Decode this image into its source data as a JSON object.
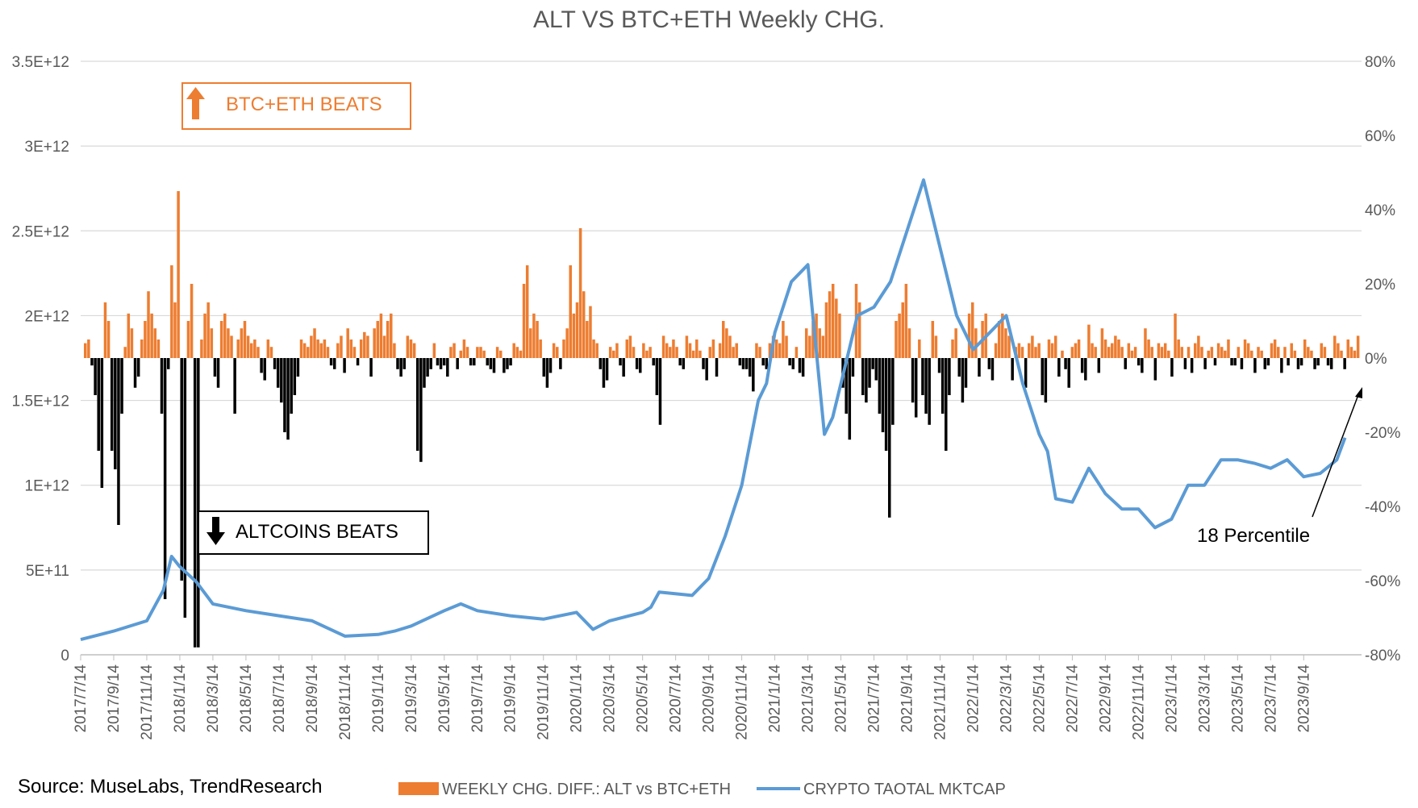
{
  "chart_data": {
    "type": "bar+line",
    "title": "ALT VS BTC+ETH Weekly CHG.",
    "source": "Source: MuseLabs, TrendResearch",
    "colors": {
      "bar_positive": "#ED7D31",
      "bar_negative": "#000000",
      "line": "#5B9BD5",
      "grid": "#D9D9D9",
      "text": "#595959"
    },
    "left_axis": {
      "min": 0,
      "max": 3500000000000,
      "ticks": [
        0,
        500000000000,
        1000000000000,
        1500000000000,
        2000000000000,
        2500000000000,
        3000000000000,
        3500000000000
      ],
      "tick_labels": [
        "0",
        "5E+11",
        "1E+12",
        "1.5E+12",
        "2E+12",
        "2.5E+12",
        "3E+12",
        "3.5E+12"
      ]
    },
    "right_axis": {
      "min": -80,
      "max": 80,
      "ticks": [
        -80,
        -60,
        -40,
        -20,
        0,
        20,
        40,
        60,
        80
      ],
      "tick_labels": [
        "-80%",
        "-60%",
        "-40%",
        "-20%",
        "0%",
        "20%",
        "40%",
        "60%",
        "80%"
      ]
    },
    "x_tick_labels": [
      "2017/7/14",
      "2017/9/14",
      "2017/11/14",
      "2018/1/14",
      "2018/3/14",
      "2018/5/14",
      "2018/7/14",
      "2018/9/14",
      "2018/11/14",
      "2019/1/14",
      "2019/3/14",
      "2019/5/14",
      "2019/7/14",
      "2019/9/14",
      "2019/11/14",
      "2020/1/14",
      "2020/3/14",
      "2020/5/14",
      "2020/7/14",
      "2020/9/14",
      "2020/11/14",
      "2021/1/14",
      "2021/3/14",
      "2021/5/14",
      "2021/7/14",
      "2021/9/14",
      "2021/11/14",
      "2022/1/14",
      "2022/3/14",
      "2022/5/14",
      "2022/7/14",
      "2022/9/14",
      "2022/11/14",
      "2023/1/14",
      "2023/3/14",
      "2023/5/14",
      "2023/7/14",
      "2023/9/14"
    ],
    "line_series": {
      "name": "CRYPTO TAOTAL MKTCAP",
      "unit": "USD",
      "months_from_2017_07": [
        0,
        2,
        4,
        5,
        5.5,
        6,
        7,
        8,
        10,
        12,
        14,
        16,
        18,
        19,
        20,
        22,
        23,
        24,
        26,
        28,
        30,
        31,
        32,
        34,
        34.5,
        35,
        37,
        38,
        39,
        40,
        41,
        41.5,
        42,
        43,
        44,
        45,
        45.5,
        46,
        47,
        48,
        49,
        51,
        52,
        53,
        54,
        55,
        56,
        57,
        58,
        58.5,
        59,
        60,
        61,
        62,
        63,
        64,
        65,
        66,
        67,
        68,
        69,
        70,
        71,
        72,
        73,
        74,
        75,
        76,
        76.5
      ],
      "values": [
        90000000000,
        140000000000,
        200000000000,
        380000000000,
        580000000000,
        520000000000,
        430000000000,
        300000000000,
        260000000000,
        230000000000,
        200000000000,
        110000000000,
        120000000000,
        140000000000,
        170000000000,
        260000000000,
        300000000000,
        260000000000,
        230000000000,
        210000000000,
        250000000000,
        150000000000,
        200000000000,
        250000000000,
        280000000000,
        370000000000,
        350000000000,
        450000000000,
        700000000000,
        1000000000000,
        1500000000000,
        1600000000000,
        1900000000000,
        2200000000000,
        2300000000000,
        1300000000000,
        1400000000000,
        1600000000000,
        2000000000000,
        2050000000000,
        2200000000000,
        2800000000000,
        2400000000000,
        2000000000000,
        1800000000000,
        1900000000000,
        2000000000000,
        1600000000000,
        1300000000000,
        1200000000000,
        920000000000,
        900000000000,
        1100000000000,
        950000000000,
        860000000000,
        860000000000,
        750000000000,
        800000000000,
        1000000000000,
        1000000000000,
        1150000000000,
        1150000000000,
        1130000000000,
        1100000000000,
        1150000000000,
        1050000000000,
        1070000000000,
        1150000000000,
        1280000000000
      ]
    },
    "bar_series": {
      "name": "WEEKLY CHG. DIFF.: ALT vs BTC+ETH",
      "unit": "percent",
      "weekly_values": [
        4,
        5,
        -2,
        -10,
        -25,
        -35,
        15,
        10,
        -25,
        -30,
        -45,
        -15,
        3,
        12,
        8,
        -8,
        -5,
        5,
        10,
        18,
        12,
        8,
        5,
        -15,
        -65,
        -3,
        25,
        15,
        45,
        -60,
        -70,
        10,
        20,
        -78,
        -78,
        5,
        12,
        15,
        8,
        -5,
        -8,
        10,
        12,
        8,
        6,
        -15,
        5,
        8,
        10,
        6,
        4,
        5,
        3,
        -4,
        -6,
        5,
        3,
        -3,
        -8,
        -12,
        -20,
        -22,
        -15,
        -10,
        -5,
        5,
        4,
        3,
        6,
        8,
        5,
        4,
        5,
        3,
        -2,
        -3,
        4,
        6,
        -4,
        8,
        5,
        3,
        -2,
        5,
        7,
        6,
        -5,
        8,
        10,
        12,
        6,
        10,
        12,
        4,
        -3,
        -5,
        -3,
        6,
        5,
        4,
        -25,
        -28,
        -8,
        -5,
        -3,
        4,
        -2,
        -3,
        -2,
        -5,
        3,
        4,
        -3,
        2,
        5,
        3,
        -2,
        -2,
        3,
        3,
        2,
        -2,
        -3,
        -4,
        3,
        2,
        -4,
        -3,
        -2,
        4,
        3,
        2,
        20,
        25,
        8,
        12,
        10,
        5,
        -5,
        -8,
        -4,
        4,
        3,
        -3,
        5,
        8,
        25,
        12,
        15,
        35,
        18,
        10,
        14,
        5,
        4,
        -3,
        -8,
        -6,
        3,
        2,
        4,
        -2,
        -5,
        5,
        6,
        3,
        -3,
        -4,
        4,
        2,
        3,
        -2,
        -10,
        -18,
        6,
        4,
        3,
        5,
        3,
        -2,
        -3,
        6,
        4,
        2,
        5,
        2,
        -3,
        -6,
        3,
        5,
        -5,
        4,
        10,
        8,
        6,
        3,
        4,
        -2,
        -3,
        -3,
        -5,
        -9,
        4,
        3,
        -2,
        -3,
        4,
        6,
        5,
        4,
        10,
        6,
        -2,
        -3,
        3,
        -4,
        -5,
        8,
        6,
        10,
        12,
        8,
        6,
        15,
        18,
        20,
        16,
        12,
        -8,
        -15,
        -22,
        -5,
        20,
        15,
        -10,
        -12,
        -8,
        -3,
        -6,
        -15,
        -20,
        -25,
        -43,
        -18,
        10,
        12,
        15,
        20,
        8,
        -12,
        -16,
        5,
        -10,
        -15,
        -18,
        10,
        6,
        -4,
        -15,
        -25,
        -10,
        5,
        8,
        -5,
        -12,
        -8,
        12,
        15,
        8,
        -5,
        10,
        12,
        -3,
        -6,
        4,
        10,
        12,
        8,
        6,
        -6,
        3,
        4,
        3,
        -8,
        4,
        6,
        3,
        4,
        -10,
        -12,
        5,
        4,
        6,
        -5,
        2,
        -3,
        -8,
        3,
        4,
        5,
        -4,
        -6,
        9,
        4,
        3,
        -4,
        8,
        5,
        3,
        4,
        6,
        5,
        3,
        -3,
        4,
        2,
        3,
        -2,
        -4,
        8,
        5,
        3,
        -6,
        4,
        3,
        4,
        2,
        -5,
        12,
        5,
        3,
        -3,
        3,
        -4,
        4,
        6,
        3,
        -3,
        2,
        3,
        -2,
        4,
        3,
        2,
        5,
        -2,
        -2,
        3,
        -3,
        5,
        4,
        2,
        -4,
        3,
        2,
        -3,
        -2,
        4,
        5,
        3,
        -4,
        3,
        -2,
        4,
        2,
        -3,
        -2,
        5,
        3,
        2,
        -3,
        -2,
        4,
        3,
        -2,
        -3,
        6,
        4,
        2,
        -3,
        5,
        3,
        2,
        6
      ]
    },
    "annotations": {
      "btc_eth_beats": "BTC+ETH BEATS",
      "altcoins_beats": "ALTCOINS BEATS",
      "percentile": "18 Percentile"
    }
  }
}
